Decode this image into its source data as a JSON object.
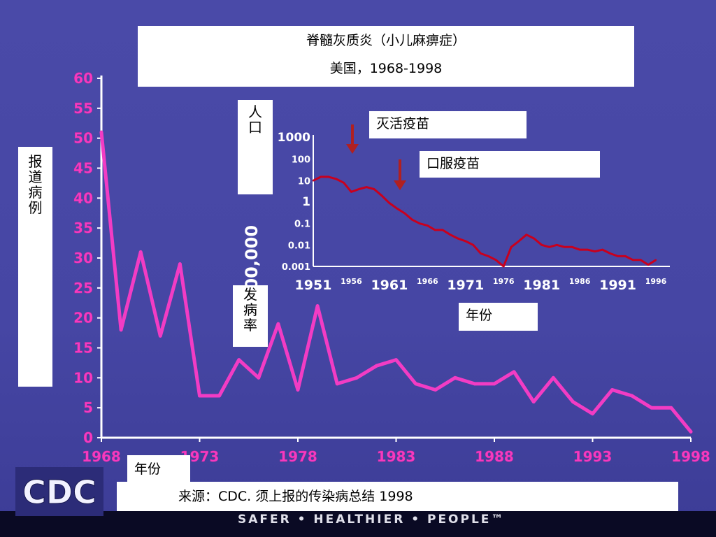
{
  "title": {
    "line1": "脊髓灰质炎（小儿麻痹症）",
    "line2": "美国，1968-1998"
  },
  "labels": {
    "ylabel": [
      "报",
      "道",
      "病",
      "例"
    ],
    "population": [
      "人",
      "口"
    ],
    "incidence": [
      "发",
      "病",
      "率"
    ],
    "ipv": "灭活疫苗",
    "opv": "口服疫苗",
    "year_inset": "年份",
    "year_main": "年份",
    "source": "来源：CDC. 须上报的传染病总结 1998",
    "tagline": "SAFER • HEALTHIER • PEOPLE™",
    "logo": "CDC"
  },
  "colors": {
    "background": "#4747a6",
    "main_series": "#f23cc4",
    "inset_series": "#c8001e",
    "arrow": "#b02020",
    "axis": "#ffffff"
  },
  "chart_data": [
    {
      "type": "line",
      "xlabel": "年份",
      "ylabel": "报道病例",
      "xlim": [
        1968,
        1998
      ],
      "ylim": [
        0,
        60
      ],
      "x_ticks": [
        "1968",
        "1973",
        "1978",
        "1983",
        "1988",
        "1993",
        "1998"
      ],
      "y_ticks": [
        "0",
        "5",
        "10",
        "15",
        "20",
        "25",
        "30",
        "35",
        "40",
        "45",
        "50",
        "55",
        "60"
      ],
      "x": [
        1968,
        1969,
        1970,
        1971,
        1972,
        1973,
        1974,
        1975,
        1976,
        1977,
        1978,
        1979,
        1980,
        1981,
        1982,
        1983,
        1984,
        1985,
        1986,
        1987,
        1988,
        1989,
        1990,
        1991,
        1992,
        1993,
        1994,
        1995,
        1996,
        1997,
        1998
      ],
      "values": [
        51,
        18,
        31,
        17,
        29,
        7,
        7,
        13,
        10,
        19,
        8,
        22,
        9,
        10,
        12,
        13,
        9,
        8,
        10,
        9,
        9,
        11,
        6,
        10,
        6,
        4,
        8,
        7,
        5,
        5,
        1
      ]
    },
    {
      "type": "line",
      "scale": "log",
      "ylabel": "人口 /100,000 发病率",
      "xlabel": "年份",
      "xlim": [
        1951,
        1996
      ],
      "ylim": [
        0.001,
        1000
      ],
      "x_ticks": [
        "1951",
        "1956",
        "1961",
        "1966",
        "1971",
        "1976",
        "1981",
        "1986",
        "1991",
        "1996"
      ],
      "y_ticks": [
        "1000",
        "100",
        "10",
        "1",
        "0.1",
        "0.01",
        "0.001"
      ],
      "annotations": [
        "灭活疫苗",
        "口服疫苗"
      ],
      "x": [
        1951,
        1952,
        1953,
        1954,
        1955,
        1956,
        1957,
        1958,
        1959,
        1960,
        1961,
        1962,
        1963,
        1964,
        1965,
        1966,
        1967,
        1968,
        1969,
        1970,
        1971,
        1972,
        1973,
        1974,
        1975,
        1976,
        1977,
        1978,
        1979,
        1980,
        1981,
        1982,
        1983,
        1984,
        1985,
        1986,
        1987,
        1988,
        1989,
        1990,
        1991,
        1992,
        1993,
        1994,
        1995,
        1996
      ],
      "values": [
        10,
        15,
        15,
        12,
        8,
        3,
        4,
        5,
        4,
        2,
        0.9,
        0.5,
        0.3,
        0.15,
        0.1,
        0.08,
        0.05,
        0.05,
        0.03,
        0.02,
        0.015,
        0.01,
        0.004,
        0.003,
        0.002,
        0.001,
        0.008,
        0.015,
        0.03,
        0.02,
        0.01,
        0.008,
        0.01,
        0.008,
        0.008,
        0.006,
        0.006,
        0.005,
        0.006,
        0.004,
        0.003,
        0.003,
        0.002,
        0.002,
        0.0012,
        0.002
      ]
    }
  ]
}
